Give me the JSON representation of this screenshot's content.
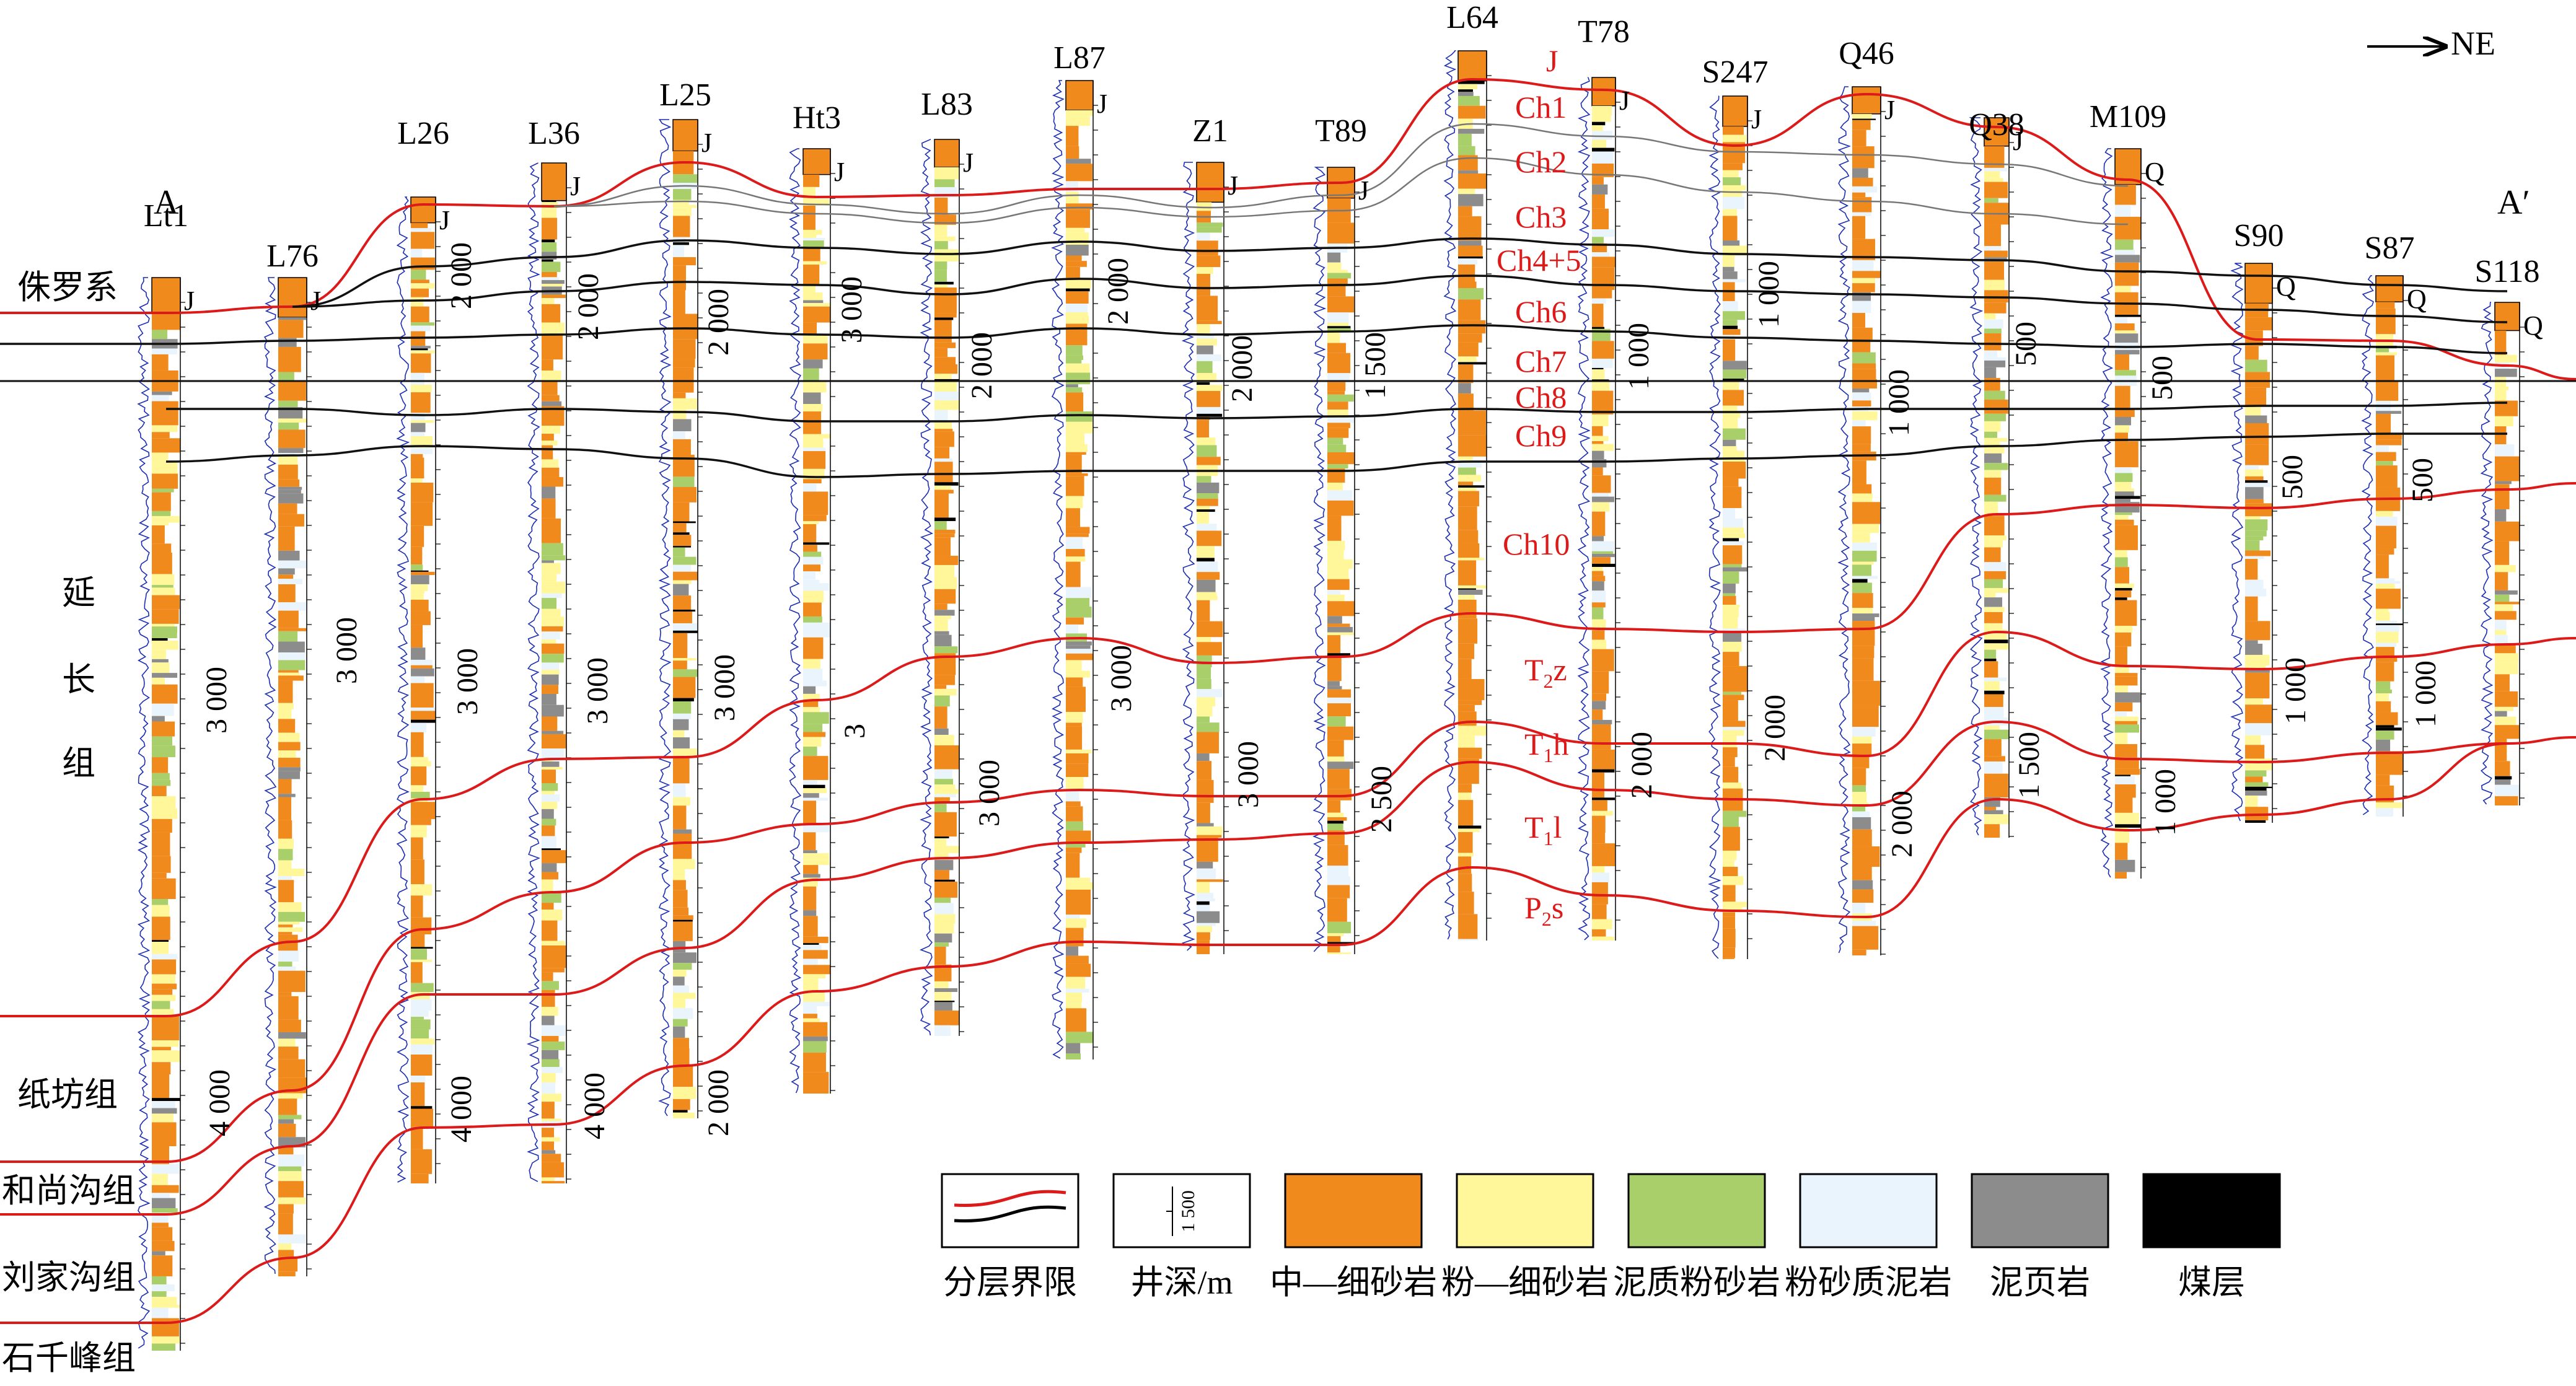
{
  "direction_label": "NE",
  "profile_ends": {
    "start": "A",
    "end": "A′"
  },
  "wells": [
    {
      "name": "Lt1",
      "cap": "J"
    },
    {
      "name": "L76",
      "cap": "J"
    },
    {
      "name": "L26",
      "cap": "J"
    },
    {
      "name": "L36",
      "cap": "J"
    },
    {
      "name": "L25",
      "cap": "J"
    },
    {
      "name": "Ht3",
      "cap": "J"
    },
    {
      "name": "L83",
      "cap": "J"
    },
    {
      "name": "L87",
      "cap": "J"
    },
    {
      "name": "Z1",
      "cap": "J"
    },
    {
      "name": "T89",
      "cap": "J"
    },
    {
      "name": "L64",
      "cap": ""
    },
    {
      "name": "T78",
      "cap": "J"
    },
    {
      "name": "S247",
      "cap": "J"
    },
    {
      "name": "Q46",
      "cap": "J"
    },
    {
      "name": "Q38",
      "cap": "J"
    },
    {
      "name": "M109",
      "cap": "Q"
    },
    {
      "name": "S90",
      "cap": "Q"
    },
    {
      "name": "S87",
      "cap": "Q"
    },
    {
      "name": "S118",
      "cap": "Q"
    }
  ],
  "layer_labels": [
    "J",
    "Ch1",
    "Ch2",
    "Ch3",
    "Ch4+5",
    "Ch6",
    "Ch7",
    "Ch8",
    "Ch9",
    "Ch10",
    "T",
    "T",
    "T",
    "P"
  ],
  "layer_label_subs": [
    "",
    "",
    "",
    "",
    "",
    "",
    "",
    "",
    "",
    "",
    "2",
    "1",
    "1",
    "2"
  ],
  "layer_label_tails": [
    "",
    "",
    "",
    "",
    "",
    "",
    "",
    "",
    "",
    "",
    "z",
    "h",
    "l",
    "s"
  ],
  "left_formations": [
    "侏罗系",
    "延",
    "长",
    "组",
    "纸坊组",
    "和尚沟组",
    "刘家沟组",
    "石千峰组"
  ],
  "depth_marks": [
    "3 000",
    "3 000",
    "4 000",
    "2 000",
    "3 000",
    "4 000",
    "2 000",
    "3 000",
    "4 000",
    "2 000",
    "3 000",
    "2 000",
    "3 000",
    "3",
    "2 000",
    "3 000",
    "2 000",
    "3 000",
    "2 000",
    "3 000",
    "1 500",
    "2 500",
    "1 000",
    "2 000",
    "1 000",
    "2 000",
    "1 000",
    "2 000",
    "500",
    "1 500",
    "500",
    "1 000",
    "500",
    "1 000",
    "500",
    "1 000"
  ],
  "legend": [
    {
      "label": "分层界限",
      "type": "line"
    },
    {
      "label": "井深/m",
      "type": "depth",
      "sample": "1 500"
    },
    {
      "label": "中—细砂岩",
      "color": "#F08A1C"
    },
    {
      "label": "粉—细砂岩",
      "color": "#FFF79A"
    },
    {
      "label": "泥质粉砂岩",
      "color": "#A9CF6A"
    },
    {
      "label": "粉砂质泥岩",
      "color": "#E9F4FD"
    },
    {
      "label": "泥页岩",
      "color": "#8C8C8C"
    },
    {
      "label": "煤层",
      "color": "#000000"
    }
  ],
  "colors": {
    "boundary_red": "#DD1A1A",
    "boundary_black": "#111111",
    "boundary_gray": "#777777",
    "label_red": "#DD1A1A",
    "gr_curve": "#1A2DB4"
  }
}
